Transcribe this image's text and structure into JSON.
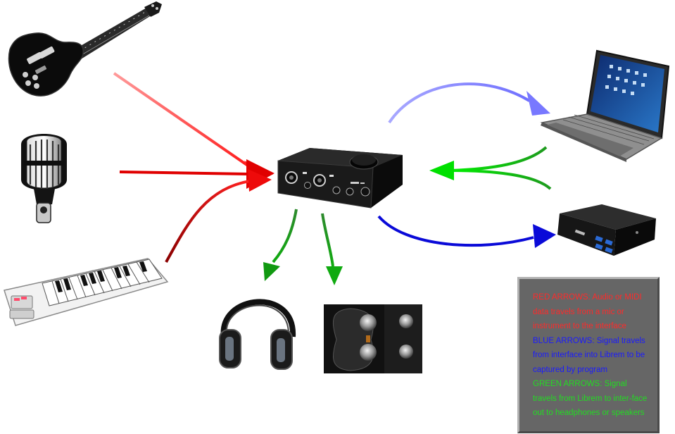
{
  "legend": {
    "red_text": "RED ARROWS: Audio or MIDI  data travels from a mic or instrument to the interface",
    "blue_text": "BLUE ARROWS: Signal travels from interface into Librem to be captured by program",
    "green_text": "GREEN ARROWS: Signal travels from Librem to inter-face out to headphones or speakers"
  },
  "colors": {
    "red": "#ff2a2a",
    "blue": "#1a1aff",
    "green": "#22dd22",
    "legend_bg": "#666666"
  },
  "icons": [
    "guitar-icon",
    "microphone-icon",
    "keyboard-icon",
    "audio-interface-icon",
    "laptop-icon",
    "mini-pc-icon",
    "headphones-icon",
    "speakers-icon"
  ]
}
